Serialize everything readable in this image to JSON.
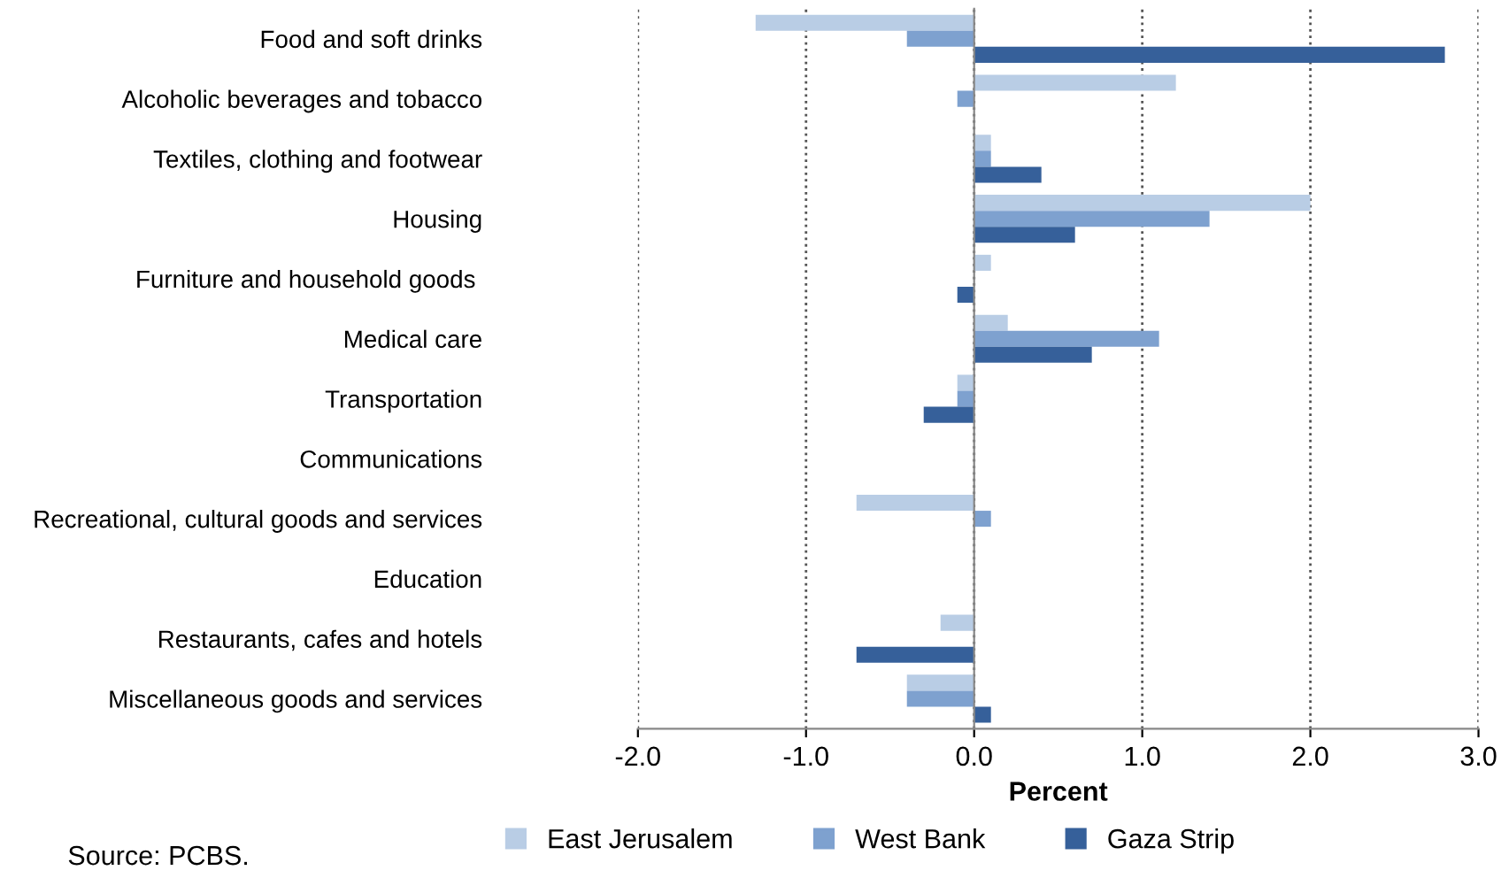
{
  "chart_data": {
    "type": "bar",
    "orientation": "horizontal",
    "categories": [
      "Food and soft drinks",
      "Alcoholic beverages and tobacco",
      "Textiles, clothing and footwear",
      "Housing",
      "Furniture and household goods ",
      "Medical care",
      "Transportation",
      "Communications",
      "Recreational, cultural goods and services",
      "Education",
      "Restaurants, cafes and hotels",
      "Miscellaneous goods and services"
    ],
    "series": [
      {
        "name": "East Jerusalem",
        "color": "#b9cde5",
        "values": [
          -1.3,
          1.2,
          0.1,
          2.0,
          0.1,
          0.2,
          -0.1,
          0,
          -0.7,
          0,
          -0.2,
          -0.4
        ]
      },
      {
        "name": "West Bank",
        "color": "#7ea1cf",
        "values": [
          -0.4,
          -0.1,
          0.1,
          1.4,
          0,
          1.1,
          -0.1,
          0,
          0.1,
          0,
          0,
          -0.4
        ]
      },
      {
        "name": "Gaza Strip",
        "color": "#36609a",
        "values": [
          2.8,
          0,
          0.4,
          0.6,
          -0.1,
          0.7,
          -0.3,
          0,
          0,
          0,
          -0.7,
          0.1
        ]
      }
    ],
    "xlabel": "Percent",
    "xlim": [
      -2,
      3
    ],
    "xticks": [
      {
        "value": -2,
        "label": "-2.0"
      },
      {
        "value": -1,
        "label": "-1.0"
      },
      {
        "value": 0,
        "label": "0.0"
      },
      {
        "value": 1,
        "label": "1.0"
      },
      {
        "value": 2,
        "label": "2.0"
      },
      {
        "value": 3,
        "label": "3.0"
      }
    ],
    "grid": "x",
    "legend": "bottom",
    "annotations": [
      "Source: PCBS."
    ]
  }
}
